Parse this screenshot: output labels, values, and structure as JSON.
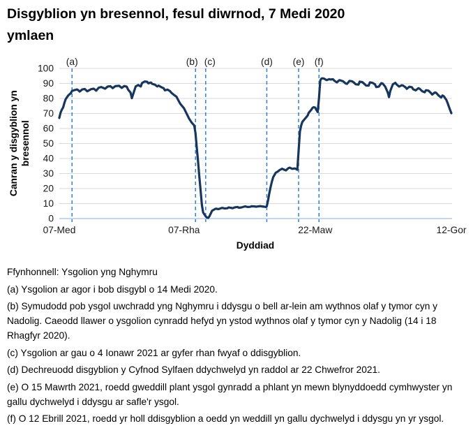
{
  "title": "Disgyblion yn bresennol, fesul diwrnod, 7 Medi 2020 ymlaen",
  "title_lines": [
    "Disgyblion yn bresennol, fesul diwrnod, 7 Medi 2020",
    "ymlaen"
  ],
  "y_axis_label_lines": [
    "Canran y disgyblion yn",
    "bresennol"
  ],
  "footnotes": [
    {
      "id": "source",
      "text": "Ffynhonnell: Ysgolion yng Nghymru"
    },
    {
      "id": "a",
      "text": "(a) Ysgolion ar agor i bob disgybl o 14 Medi 2020."
    },
    {
      "id": "b",
      "text": "(b) Symudodd pob ysgol uwchradd yng Nghymru i ddysgu o bell ar-lein am wythnos olaf y tymor cyn y Nadolig. Caeodd llawer o ysgolion cynradd hefyd yn ystod wythnos olaf y tymor cyn y Nadolig (14 i 18 Rhagfyr 2020)."
    },
    {
      "id": "c",
      "text": "(c) Ysgolion ar gau o 4 Ionawr 2021 ar gyfer rhan fwyaf o ddisgyblion."
    },
    {
      "id": "d",
      "text": "(d) Dechreuodd disgyblion y Cyfnod Sylfaen ddychwelyd yn raddol ar 22 Chwefror 2021."
    },
    {
      "id": "e",
      "text": "(e) O 15 Mawrth 2021, roedd gweddill plant ysgol gynradd a phlant yn mewn blynyddoedd cymhwyster yn gallu dychwelyd i ddysgu ar safle'r ysgol."
    },
    {
      "id": "f",
      "text": "(f) O 12 Ebrill 2021, roedd yr holl ddisgyblion a oedd yn weddill yn gallu dychwelyd i ddysgu yn yr ysgol."
    }
  ],
  "chart_data": {
    "type": "line",
    "title": "Disgyblion yn bresennol, fesul diwrnod, 7 Medi 2020 ymlaen",
    "xlabel": "Dyddiad",
    "ylabel": "Canran y disgyblion yn bresennol",
    "ylim": [
      0,
      100
    ],
    "ytick_step": 10,
    "grid": "horizontal",
    "legend": "none",
    "x_unit": "days since 07-Med (7 Medi 2020)",
    "x_range_days": [
      0,
      308
    ],
    "x_ticks": [
      {
        "day": 0,
        "label": "07-Med"
      },
      {
        "day": 98,
        "label": "07-Rha"
      },
      {
        "day": 201,
        "label": "22-Maw"
      },
      {
        "day": 308,
        "label": "12-Gor"
      }
    ],
    "event_lines": [
      {
        "key": "(a)",
        "day": 10,
        "label_dx": 0
      },
      {
        "key": "(b)",
        "day": 107,
        "label_dx": -5
      },
      {
        "key": "(c)",
        "day": 115,
        "label_dx": 6
      },
      {
        "key": "(d)",
        "day": 163,
        "label_dx": 0
      },
      {
        "key": "(e)",
        "day": 188,
        "label_dx": 0
      },
      {
        "key": "(f)",
        "day": 204,
        "label_dx": 0
      }
    ],
    "colors": {
      "line": "#17365D",
      "event_line": "#2E7FD9",
      "gridline": "#DADADA",
      "zero_axis": "#AECBEB",
      "text": "#1A1A1A"
    },
    "series": [
      {
        "name": "Canran y disgyblion yn bresennol",
        "color": "#17365D",
        "points": [
          [
            0,
            67
          ],
          [
            1,
            70.5
          ],
          [
            2,
            72.5
          ],
          [
            3,
            74
          ],
          [
            4,
            77
          ],
          [
            5,
            79.5
          ],
          [
            7,
            82
          ],
          [
            9,
            83.5
          ],
          [
            10,
            85
          ],
          [
            12,
            85.6
          ],
          [
            14,
            86
          ],
          [
            15,
            85.4
          ],
          [
            16,
            84.6
          ],
          [
            18,
            86
          ],
          [
            20,
            86.3
          ],
          [
            22,
            84.8
          ],
          [
            25,
            86.2
          ],
          [
            27,
            86.5
          ],
          [
            29,
            85.2
          ],
          [
            31,
            87.2
          ],
          [
            33,
            87.6
          ],
          [
            36,
            86.5
          ],
          [
            38,
            87.9
          ],
          [
            40,
            88.2
          ],
          [
            42,
            86.9
          ],
          [
            44,
            88.2
          ],
          [
            47,
            88.4
          ],
          [
            49,
            87
          ],
          [
            51,
            88.3
          ],
          [
            53,
            87.8
          ],
          [
            54,
            86
          ],
          [
            56,
            83.8
          ],
          [
            57,
            80.2
          ],
          [
            59,
            85.5
          ],
          [
            60,
            88
          ],
          [
            62,
            89
          ],
          [
            64,
            88
          ],
          [
            65,
            90.3
          ],
          [
            67,
            91.3
          ],
          [
            69,
            91.1
          ],
          [
            70,
            90.1
          ],
          [
            72,
            90.6
          ],
          [
            73,
            89.7
          ],
          [
            75,
            89.2
          ],
          [
            77,
            88
          ],
          [
            78,
            88.6
          ],
          [
            80,
            87.6
          ],
          [
            82,
            86.8
          ],
          [
            83,
            85.4
          ],
          [
            85,
            85.9
          ],
          [
            87,
            84.9
          ],
          [
            88,
            83.8
          ],
          [
            90,
            82.4
          ],
          [
            92,
            81.2
          ],
          [
            93,
            79.6
          ],
          [
            95,
            76.5
          ],
          [
            98,
            73.4
          ],
          [
            100,
            69.9
          ],
          [
            102,
            66.5
          ],
          [
            104,
            63.9
          ],
          [
            106,
            62
          ],
          [
            107,
            57
          ],
          [
            108,
            47
          ],
          [
            109,
            38
          ],
          [
            110,
            28
          ],
          [
            111,
            19
          ],
          [
            112,
            9
          ],
          [
            113,
            4
          ],
          [
            114,
            2.8
          ],
          [
            115,
            1.5
          ],
          [
            116,
            0.6
          ],
          [
            117,
            0.4
          ],
          [
            118,
            1.6
          ],
          [
            119,
            3.4
          ],
          [
            120,
            5.2
          ],
          [
            122,
            6.2
          ],
          [
            123,
            6.6
          ],
          [
            125,
            6.3
          ],
          [
            127,
            6.9
          ],
          [
            128,
            7.1
          ],
          [
            130,
            6.7
          ],
          [
            132,
            6.9
          ],
          [
            133,
            7.4
          ],
          [
            135,
            7.1
          ],
          [
            136,
            6.9
          ],
          [
            138,
            7.5
          ],
          [
            140,
            7.7
          ],
          [
            141,
            7.2
          ],
          [
            143,
            7.4
          ],
          [
            145,
            7.9
          ],
          [
            146,
            8.1
          ],
          [
            148,
            7.7
          ],
          [
            150,
            7.8
          ],
          [
            151,
            8.2
          ],
          [
            153,
            8.1
          ],
          [
            155,
            7.9
          ],
          [
            156,
            8.1
          ],
          [
            158,
            8.3
          ],
          [
            159,
            8.1
          ],
          [
            161,
            7.9
          ],
          [
            162,
            7.7
          ],
          [
            163,
            8.2
          ],
          [
            164,
            12
          ],
          [
            165,
            17
          ],
          [
            166,
            21
          ],
          [
            167,
            24.5
          ],
          [
            168,
            27.5
          ],
          [
            170,
            30.5
          ],
          [
            172,
            31.5
          ],
          [
            173,
            32.3
          ],
          [
            175,
            33.2
          ],
          [
            176,
            32.8
          ],
          [
            178,
            32.1
          ],
          [
            180,
            33.6
          ],
          [
            181,
            33.9
          ],
          [
            183,
            33.1
          ],
          [
            185,
            33.4
          ],
          [
            186,
            33
          ],
          [
            187,
            32.5
          ],
          [
            188,
            45
          ],
          [
            189,
            58
          ],
          [
            190,
            62
          ],
          [
            191,
            64.5
          ],
          [
            193,
            66.5
          ],
          [
            195,
            68.5
          ],
          [
            196,
            70.5
          ],
          [
            198,
            72.5
          ],
          [
            199,
            73.8
          ],
          [
            200,
            74.2
          ],
          [
            201,
            73.9
          ],
          [
            202,
            72.3
          ],
          [
            203,
            71
          ],
          [
            204,
            80
          ],
          [
            205,
            92
          ],
          [
            206,
            93.3
          ],
          [
            207,
            93.4
          ],
          [
            208,
            93.2
          ],
          [
            210,
            92.2
          ],
          [
            212,
            92.9
          ],
          [
            213,
            92.6
          ],
          [
            215,
            92.8
          ],
          [
            216,
            91.9
          ],
          [
            218,
            90.7
          ],
          [
            220,
            92.2
          ],
          [
            221,
            92
          ],
          [
            223,
            91.4
          ],
          [
            225,
            89.9
          ],
          [
            226,
            89.7
          ],
          [
            228,
            91.7
          ],
          [
            230,
            91.4
          ],
          [
            231,
            90.9
          ],
          [
            233,
            89.4
          ],
          [
            235,
            89.2
          ],
          [
            236,
            91.2
          ],
          [
            238,
            90.9
          ],
          [
            239,
            90.2
          ],
          [
            241,
            88.6
          ],
          [
            243,
            88.5
          ],
          [
            244,
            90.7
          ],
          [
            246,
            90.4
          ],
          [
            248,
            89.4
          ],
          [
            249,
            87.6
          ],
          [
            251,
            87.9
          ],
          [
            253,
            90.2
          ],
          [
            254,
            89.9
          ],
          [
            256,
            87.9
          ],
          [
            258,
            84
          ],
          [
            259,
            80.9
          ],
          [
            260,
            85
          ],
          [
            262,
            89.4
          ],
          [
            264,
            90.4
          ],
          [
            265,
            89.3
          ],
          [
            267,
            87.9
          ],
          [
            269,
            88.8
          ],
          [
            270,
            88.6
          ],
          [
            272,
            87.4
          ],
          [
            273,
            86.4
          ],
          [
            275,
            87.8
          ],
          [
            277,
            87.5
          ],
          [
            278,
            86.1
          ],
          [
            280,
            85.4
          ],
          [
            282,
            86.8
          ],
          [
            283,
            86.5
          ],
          [
            285,
            84.9
          ],
          [
            287,
            84.1
          ],
          [
            288,
            85.5
          ],
          [
            290,
            85.2
          ],
          [
            292,
            83.6
          ],
          [
            293,
            82.6
          ],
          [
            295,
            84
          ],
          [
            296,
            83.8
          ],
          [
            298,
            81.9
          ],
          [
            300,
            80.6
          ],
          [
            301,
            82
          ],
          [
            302,
            81.5
          ],
          [
            304,
            79.1
          ],
          [
            305,
            77.1
          ],
          [
            306,
            74.6
          ],
          [
            307,
            72.3
          ],
          [
            308,
            70.2
          ]
        ]
      }
    ]
  }
}
